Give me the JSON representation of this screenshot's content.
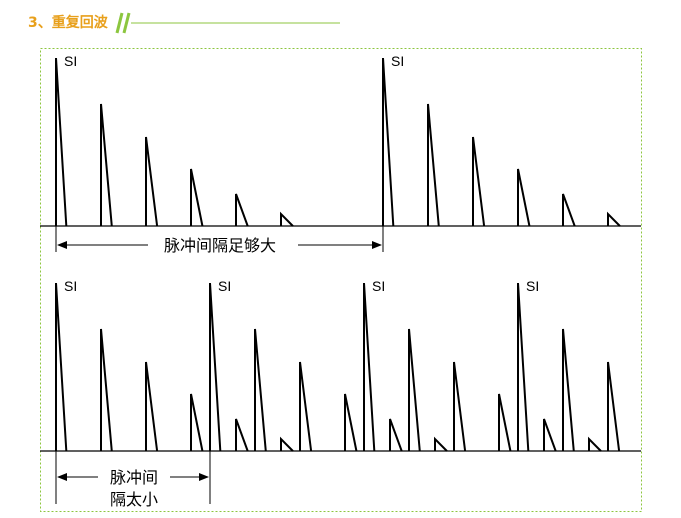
{
  "header": {
    "title": "3、重复回波"
  },
  "diagrams": [
    {
      "pulse_label": "SI",
      "interval_label": "脉冲间隔足够大"
    },
    {
      "pulse_label": "SI",
      "interval_label_lines": [
        "脉冲间",
        "隔太小"
      ]
    }
  ]
}
